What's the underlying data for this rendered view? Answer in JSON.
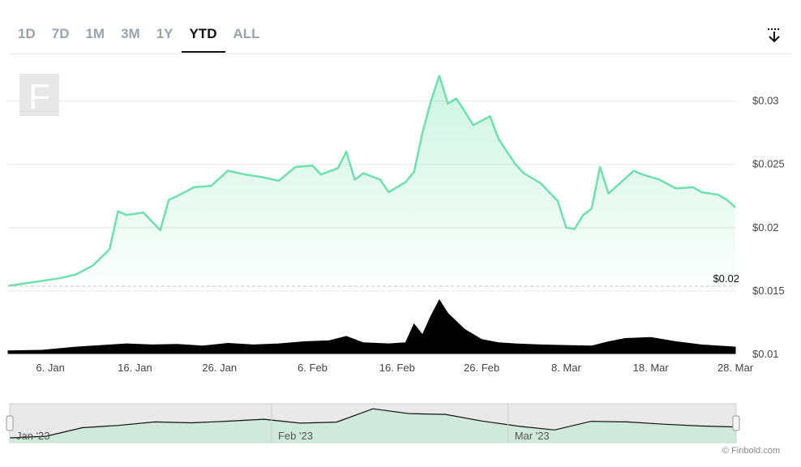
{
  "toolbar": {
    "tabs": [
      {
        "label": "1D",
        "active": false
      },
      {
        "label": "7D",
        "active": false
      },
      {
        "label": "1M",
        "active": false
      },
      {
        "label": "3M",
        "active": false
      },
      {
        "label": "1Y",
        "active": false
      },
      {
        "label": "YTD",
        "active": true
      },
      {
        "label": "ALL",
        "active": false
      }
    ],
    "download_icon": "download-icon"
  },
  "watermark": {
    "letter": "F"
  },
  "credit": "© Finbold.com",
  "colors": {
    "price_line": "#6ee0ad",
    "price_fill": "#c9f3e0",
    "volume": "#000000",
    "grid": "#e8e8e8"
  },
  "chart_data": {
    "type": "area",
    "price_series": {
      "x": [
        "2023-01-01",
        "2023-01-04",
        "2023-01-07",
        "2023-01-09",
        "2023-01-11",
        "2023-01-13",
        "2023-01-14",
        "2023-01-15",
        "2023-01-17",
        "2023-01-19",
        "2023-01-20",
        "2023-01-21",
        "2023-01-23",
        "2023-01-25",
        "2023-01-27",
        "2023-01-29",
        "2023-01-31",
        "2023-02-02",
        "2023-02-04",
        "2023-02-06",
        "2023-02-07",
        "2023-02-09",
        "2023-02-10",
        "2023-02-11",
        "2023-02-12",
        "2023-02-14",
        "2023-02-15",
        "2023-02-17",
        "2023-02-18",
        "2023-02-19",
        "2023-02-20",
        "2023-02-21",
        "2023-02-22",
        "2023-02-23",
        "2023-02-24",
        "2023-02-25",
        "2023-02-27",
        "2023-02-28",
        "2023-03-02",
        "2023-03-03",
        "2023-03-05",
        "2023-03-07",
        "2023-03-08",
        "2023-03-09",
        "2023-03-10",
        "2023-03-11",
        "2023-03-12",
        "2023-03-13",
        "2023-03-15",
        "2023-03-16",
        "2023-03-17",
        "2023-03-19",
        "2023-03-21",
        "2023-03-23",
        "2023-03-24",
        "2023-03-26",
        "2023-03-27",
        "2023-03-28"
      ],
      "y": [
        0.0154,
        0.0157,
        0.016,
        0.0163,
        0.017,
        0.0183,
        0.0213,
        0.021,
        0.0212,
        0.0198,
        0.0222,
        0.0225,
        0.0232,
        0.0233,
        0.0245,
        0.0242,
        0.024,
        0.0237,
        0.0248,
        0.0249,
        0.0242,
        0.0247,
        0.026,
        0.0238,
        0.0243,
        0.0238,
        0.0228,
        0.0236,
        0.0244,
        0.0275,
        0.03,
        0.032,
        0.0298,
        0.0302,
        0.0292,
        0.0281,
        0.0288,
        0.027,
        0.025,
        0.0243,
        0.0235,
        0.0221,
        0.02,
        0.0199,
        0.021,
        0.0215,
        0.0248,
        0.0227,
        0.0239,
        0.0245,
        0.0242,
        0.0238,
        0.0231,
        0.0232,
        0.0228,
        0.0226,
        0.0222,
        0.0216
      ],
      "current_label": "$0.02",
      "baseline_value": 0.0152
    },
    "volume_series": {
      "x": [
        "2023-01-01",
        "2023-01-05",
        "2023-01-09",
        "2023-01-12",
        "2023-01-15",
        "2023-01-18",
        "2023-01-21",
        "2023-01-24",
        "2023-01-27",
        "2023-01-30",
        "2023-02-02",
        "2023-02-05",
        "2023-02-08",
        "2023-02-10",
        "2023-02-12",
        "2023-02-15",
        "2023-02-17",
        "2023-02-18",
        "2023-02-19",
        "2023-02-20",
        "2023-02-21",
        "2023-02-22",
        "2023-02-24",
        "2023-02-26",
        "2023-02-28",
        "2023-03-02",
        "2023-03-05",
        "2023-03-08",
        "2023-03-11",
        "2023-03-13",
        "2023-03-15",
        "2023-03-18",
        "2023-03-21",
        "2023-03-24",
        "2023-03-28"
      ],
      "relative_values": [
        0.05,
        0.06,
        0.12,
        0.15,
        0.18,
        0.16,
        0.17,
        0.14,
        0.19,
        0.16,
        0.18,
        0.22,
        0.24,
        0.32,
        0.2,
        0.18,
        0.2,
        0.55,
        0.35,
        0.7,
        1.0,
        0.75,
        0.45,
        0.26,
        0.2,
        0.18,
        0.16,
        0.15,
        0.14,
        0.22,
        0.28,
        0.3,
        0.22,
        0.16,
        0.12
      ]
    },
    "navigator_series": {
      "y": [
        0.0154,
        0.0163,
        0.0212,
        0.0225,
        0.0245,
        0.024,
        0.0249,
        0.026,
        0.0238,
        0.0244,
        0.032,
        0.0292,
        0.0288,
        0.025,
        0.0221,
        0.0199,
        0.0248,
        0.0245,
        0.0232,
        0.0222,
        0.0216
      ]
    },
    "x_tick_labels": [
      "6. Jan",
      "16. Jan",
      "26. Jan",
      "6. Feb",
      "16. Feb",
      "26. Feb",
      "8. Mar",
      "18. Mar",
      "28. Mar"
    ],
    "x_tick_dates": [
      "2023-01-06",
      "2023-01-16",
      "2023-01-26",
      "2023-02-06",
      "2023-02-16",
      "2023-02-26",
      "2023-03-08",
      "2023-03-18",
      "2023-03-28"
    ],
    "y_tick_labels": [
      "$0.03",
      "$0.025",
      "$0.02",
      "$0.015",
      "$0.01"
    ],
    "y_tick_values": [
      0.03,
      0.025,
      0.02,
      0.015,
      0.01
    ],
    "ylim": [
      0.01,
      0.0335
    ],
    "xlim": [
      "2023-01-01",
      "2023-03-28"
    ],
    "navigator_labels": [
      "Jan '23",
      "Feb '23",
      "Mar '23"
    ],
    "navigator_label_dates": [
      "2023-01-01",
      "2023-02-01",
      "2023-03-01"
    ],
    "grid": true
  }
}
